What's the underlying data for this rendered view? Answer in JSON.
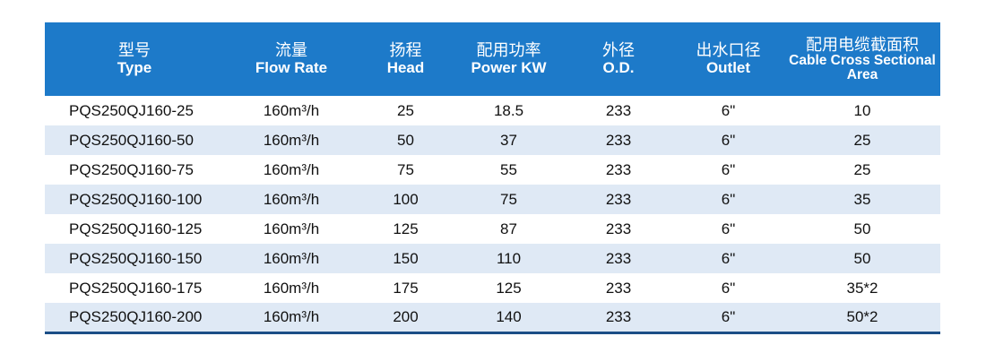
{
  "colors": {
    "header_bg": "#1d7ac9",
    "stripe": "#dfe9f5",
    "bottom_rule": "#1b4e86"
  },
  "headers": [
    {
      "zh": "型号",
      "en": "Type"
    },
    {
      "zh": "流量",
      "en": "Flow Rate"
    },
    {
      "zh": "扬程",
      "en": "Head"
    },
    {
      "zh": "配用功率",
      "en": "Power KW"
    },
    {
      "zh": "外径",
      "en": "O.D."
    },
    {
      "zh": "出水口径",
      "en": "Outlet"
    },
    {
      "zh": "配用电缆截面积",
      "en": "Cable Cross Sectional Area"
    }
  ],
  "rows": [
    [
      "PQS250QJ160-25",
      "160m³/h",
      "25",
      "18.5",
      "233",
      "6\"",
      "10"
    ],
    [
      "PQS250QJ160-50",
      "160m³/h",
      "50",
      "37",
      "233",
      "6\"",
      "25"
    ],
    [
      "PQS250QJ160-75",
      "160m³/h",
      "75",
      "55",
      "233",
      "6\"",
      "25"
    ],
    [
      "PQS250QJ160-100",
      "160m³/h",
      "100",
      "75",
      "233",
      "6\"",
      "35"
    ],
    [
      "PQS250QJ160-125",
      "160m³/h",
      "125",
      "87",
      "233",
      "6\"",
      "50"
    ],
    [
      "PQS250QJ160-150",
      "160m³/h",
      "150",
      "110",
      "233",
      "6\"",
      "50"
    ],
    [
      "PQS250QJ160-175",
      "160m³/h",
      "175",
      "125",
      "233",
      "6\"",
      "35*2"
    ],
    [
      "PQS250QJ160-200",
      "160m³/h",
      "200",
      "140",
      "233",
      "6\"",
      "50*2"
    ]
  ]
}
